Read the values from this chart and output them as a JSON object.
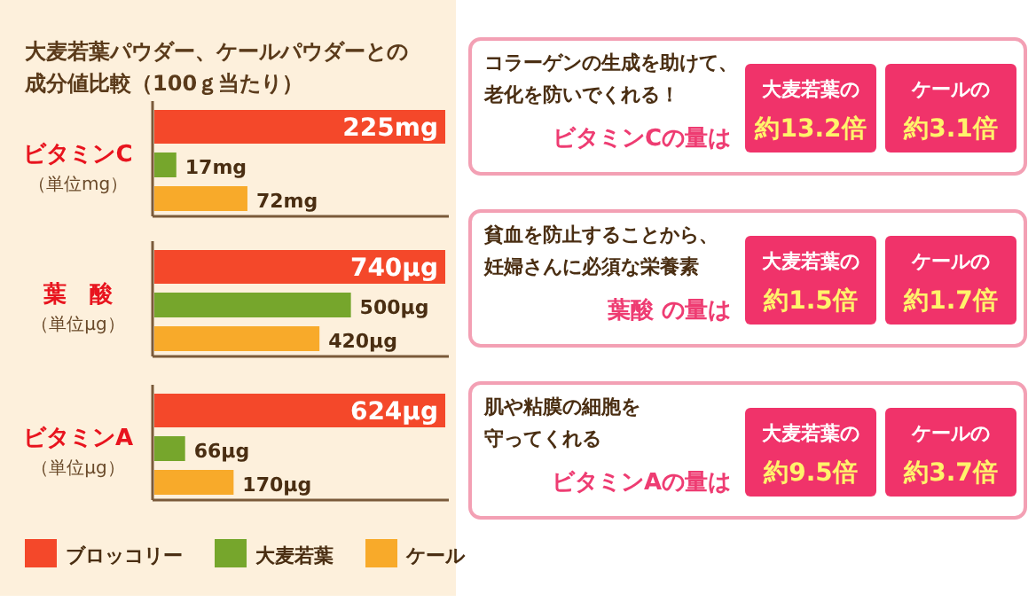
{
  "chart_data": [
    {
      "type": "other",
      "title": "大麦若葉パウダー、ケールパウダーとの",
      "subtitle": "成分値比較（100ｇ当たり）"
    },
    {
      "type": "bar",
      "orientation": "horizontal",
      "title": "ビタミンC",
      "subtitle": "（単位mg）",
      "categories": [
        null
      ],
      "series": [
        {
          "color": "#f4482a",
          "values": [
            225
          ],
          "value_labels": [
            "225mg"
          ]
        },
        {
          "color": "#76a62c",
          "values": [
            17
          ],
          "value_labels": [
            "17mg"
          ]
        },
        {
          "color": "#f8aa2a",
          "values": [
            72
          ],
          "value_labels": [
            "72mg"
          ]
        }
      ]
    },
    {
      "type": "other",
      "title": "ビタミンCの量は",
      "annotations": [
        "コラーゲンの生成を助けて、",
        "老化を防いでくれる！",
        "大麦若葉の",
        "約13.2倍",
        "ケールの",
        "約3.1倍"
      ]
    },
    {
      "type": "bar",
      "orientation": "horizontal",
      "title": "葉　酸",
      "subtitle": "（単位μg）",
      "categories": [
        null
      ],
      "series": [
        {
          "color": "#f4482a",
          "values": [
            740
          ],
          "value_labels": [
            "740μg"
          ]
        },
        {
          "color": "#76a62c",
          "values": [
            500
          ],
          "value_labels": [
            "500μg"
          ]
        },
        {
          "color": "#f8aa2a",
          "values": [
            420
          ],
          "value_labels": [
            "420μg"
          ]
        }
      ]
    },
    {
      "type": "other",
      "title": "葉酸 の量は",
      "annotations": [
        "貧血を防止することから、",
        "妊婦さんに必須な栄養素",
        "大麦若葉の",
        "約1.5倍",
        "ケールの",
        "約1.7倍"
      ]
    },
    {
      "type": "bar",
      "orientation": "horizontal",
      "title": "ビタミンA",
      "subtitle": "（単位μg）",
      "categories": [
        null
      ],
      "legend": "bottom",
      "series": [
        {
          "name": "ブロッコリー",
          "color": "#f4482a",
          "values": [
            624
          ],
          "value_labels": [
            "624μg"
          ]
        },
        {
          "name": "大麦若葉",
          "color": "#76a62c",
          "values": [
            66
          ],
          "value_labels": [
            "66μg"
          ]
        },
        {
          "name": "ケール",
          "color": "#f8aa2a",
          "values": [
            170
          ],
          "value_labels": [
            "170μg"
          ]
        }
      ]
    },
    {
      "type": "other",
      "title": "ビタミンAの量は",
      "annotations": [
        "肌や粘膜の細胞を",
        "守ってくれる",
        "大麦若葉の",
        "約9.5倍",
        "ケールの",
        "約3.7倍"
      ]
    }
  ]
}
